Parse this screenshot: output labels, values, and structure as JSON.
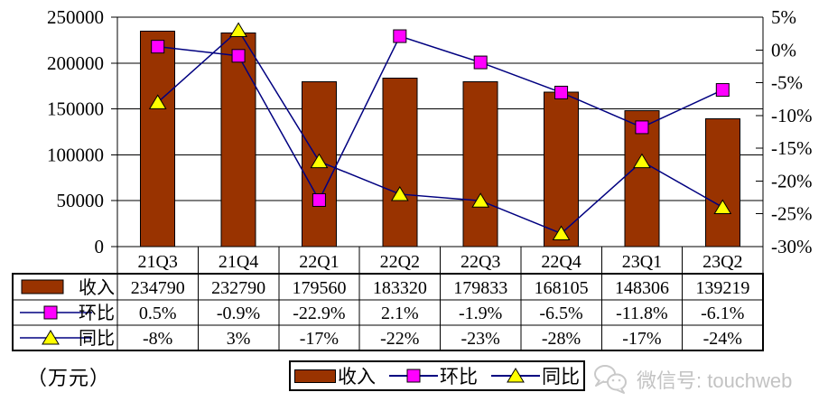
{
  "chart_data": {
    "type": "bar+line",
    "categories": [
      "21Q3",
      "21Q4",
      "22Q1",
      "22Q2",
      "22Q3",
      "22Q4",
      "23Q1",
      "23Q2"
    ],
    "series": [
      {
        "name": "收入",
        "type": "bar",
        "axis": "left",
        "color": "#993300",
        "values": [
          234790,
          232790,
          179560,
          183320,
          179833,
          168105,
          148306,
          139219
        ],
        "display": [
          "234790",
          "232790",
          "179560",
          "183320",
          "179833",
          "168105",
          "148306",
          "139219"
        ]
      },
      {
        "name": "环比",
        "type": "line",
        "axis": "right",
        "marker": "square",
        "marker_color": "#FF00FF",
        "line_color": "#000080",
        "values": [
          0.5,
          -0.9,
          -22.9,
          2.1,
          -1.9,
          -6.5,
          -11.8,
          -6.1
        ],
        "display": [
          "0.5%",
          "-0.9%",
          "-22.9%",
          "2.1%",
          "-1.9%",
          "-6.5%",
          "-11.8%",
          "-6.1%"
        ]
      },
      {
        "name": "同比",
        "type": "line",
        "axis": "right",
        "marker": "triangle",
        "marker_color": "#FFFF00",
        "line_color": "#000080",
        "values": [
          -8,
          3,
          -17,
          -22,
          -23,
          -28,
          -17,
          -24
        ],
        "display": [
          "-8%",
          "3%",
          "-17%",
          "-22%",
          "-23%",
          "-28%",
          "-17%",
          "-24%"
        ]
      }
    ],
    "left_axis": {
      "min": 0,
      "max": 250000,
      "step": 50000,
      "labels": [
        "250000",
        "200000",
        "150000",
        "100000",
        "50000",
        "0"
      ]
    },
    "right_axis": {
      "min": -30,
      "max": 5,
      "step": 5,
      "labels": [
        "5%",
        "0%",
        "-5%",
        "-10%",
        "-15%",
        "-20%",
        "-25%",
        "-30%"
      ]
    },
    "grid": "horizontal",
    "legend_position": "bottom",
    "data_table_shown": true,
    "unit_label": "（万元）"
  },
  "legend": {
    "items": [
      "收入",
      "环比",
      "同比"
    ]
  },
  "watermark": {
    "icon": "wechat-icon",
    "text": "微信号: touchweb"
  }
}
